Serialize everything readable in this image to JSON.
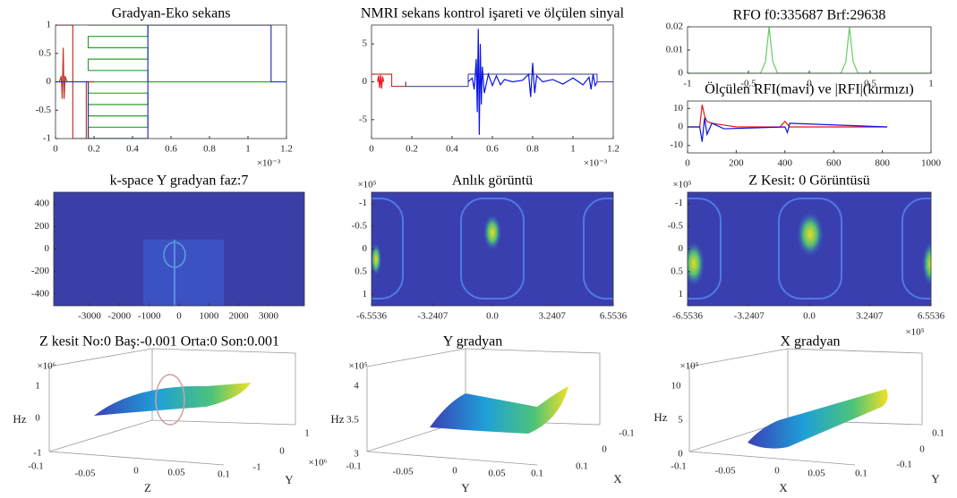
{
  "chart_data": [
    {
      "type": "line",
      "title": "Gradyan-Eko sekans",
      "xlim": [
        0,
        1.2
      ],
      "ylim": [
        -1,
        1
      ],
      "xticks": [
        0,
        0.2,
        0.4,
        0.6,
        0.8,
        1,
        1.2
      ],
      "yticks": [
        -1,
        -0.5,
        0,
        0.5,
        1
      ],
      "x_exponent": "×10⁻³",
      "series": [
        {
          "color": "#2ca02c",
          "x": [
            0.17,
            0.48,
            0.48,
            0.17,
            0.17,
            0.48,
            0.48,
            0.17,
            0.17,
            0.48,
            0.48,
            0.17,
            0.17,
            0.48,
            0.48,
            0.17,
            0.17,
            0.48,
            0.48,
            0.17,
            0.17,
            0.48
          ],
          "values": [
            1,
            1,
            0.8,
            0.8,
            0.6,
            0.6,
            0.4,
            0.4,
            0.2,
            0.2,
            0,
            0,
            -0.2,
            -0.2,
            -0.4,
            -0.4,
            -0.6,
            -0.6,
            -0.8,
            -0.8,
            -1,
            -1
          ]
        },
        {
          "color": "#2ca02c",
          "x": [
            0.48,
            1.12
          ],
          "values": [
            0,
            0
          ]
        },
        {
          "color": "#c0392b",
          "x": [
            0,
            0.09,
            0.09,
            0.16,
            0.16,
            0.2
          ],
          "values": [
            1,
            1,
            -1,
            -1,
            0,
            0
          ]
        },
        {
          "color": "#c0392b",
          "x": [
            0.02,
            0.03,
            0.035,
            0.04,
            0.045,
            0.05,
            0.06
          ],
          "values": [
            0,
            0.1,
            -0.3,
            0.6,
            -0.3,
            0.1,
            0
          ]
        },
        {
          "color": "#2a3ab0",
          "x": [
            0,
            0.17,
            0.17,
            0.48,
            0.48,
            1.12,
            1.12,
            1.2
          ],
          "values": [
            0,
            0,
            -1,
            -1,
            1,
            1,
            0,
            0
          ]
        }
      ]
    },
    {
      "type": "line",
      "title": "NMRI sekans kontrol işareti ve ölçülen sinyal",
      "xlim": [
        0,
        1.2
      ],
      "ylim": [
        -7.5,
        7.5
      ],
      "xticks": [
        0,
        0.2,
        0.4,
        0.6,
        0.8,
        1,
        1.2
      ],
      "yticks": [
        -5,
        0,
        5
      ],
      "x_exponent": "×10⁻³",
      "series": [
        {
          "color": "#c0392b",
          "x": [
            0,
            0.1,
            0.1,
            0.17,
            0.17
          ],
          "values": [
            1,
            1,
            -0.6,
            -0.6,
            0
          ]
        },
        {
          "color": "#e8141c",
          "x": [
            0.03,
            0.035,
            0.04,
            0.045,
            0.05,
            0.055,
            0.06
          ],
          "values": [
            0,
            0.8,
            -0.8,
            0.9,
            -0.9,
            0.7,
            0
          ]
        },
        {
          "color": "#2ca02c",
          "x": [
            0.17,
            0.48
          ],
          "values": [
            -0.6,
            -0.6
          ]
        },
        {
          "color": "#5a5aa0",
          "x": [
            0.17,
            0.17,
            0.48,
            0.48,
            1.12,
            1.12,
            1.2
          ],
          "values": [
            0,
            -0.6,
            -0.6,
            1,
            1,
            0,
            0
          ]
        },
        {
          "color": "#0a14e0",
          "x": [
            0.48,
            0.5,
            0.51,
            0.52,
            0.525,
            0.53,
            0.535,
            0.54,
            0.545,
            0.55,
            0.56,
            0.58,
            0.6,
            0.62,
            0.64,
            0.66,
            0.7,
            0.75,
            0.78,
            0.79,
            0.8,
            0.81,
            0.82,
            0.85,
            0.9,
            0.95,
            1.0,
            1.05,
            1.08,
            1.09,
            1.1,
            1.11,
            1.12
          ],
          "values": [
            0,
            0.5,
            -1,
            3,
            -4,
            7,
            -7,
            5,
            -3,
            2,
            -1.5,
            1,
            -0.5,
            0.8,
            -0.4,
            0.3,
            0,
            0.2,
            1,
            -2,
            2.5,
            -1.5,
            0.8,
            0,
            0.3,
            -0.3,
            0.5,
            -0.4,
            0.6,
            -1,
            1,
            -0.5,
            0
          ]
        }
      ]
    },
    {
      "type": "line",
      "title": "RFO f0:335687 Brf:29638",
      "xlim": [
        -1,
        1
      ],
      "ylim": [
        0,
        0.02
      ],
      "xticks": [
        -1,
        -0.5,
        0,
        0.5,
        1
      ],
      "yticks": [
        0,
        0.01,
        0.02
      ],
      "series": [
        {
          "color": "#66cc66",
          "x": [
            -1,
            -0.4,
            -0.36,
            -0.33,
            -0.3,
            -0.26,
            0.26,
            0.3,
            0.33,
            0.36,
            0.4,
            1
          ],
          "values": [
            0,
            0,
            0.005,
            0.02,
            0.005,
            0,
            0,
            0.005,
            0.02,
            0.005,
            0,
            0
          ]
        }
      ]
    },
    {
      "type": "line",
      "title": "Ölçülen RFI(mavi) ve |RFI|(kırmızı)",
      "xlim": [
        0,
        1000
      ],
      "ylim": [
        -14,
        14
      ],
      "xticks": [
        0,
        200,
        400,
        600,
        800,
        1000
      ],
      "yticks": [
        -10,
        0,
        10
      ],
      "series": [
        {
          "color": "#e8141c",
          "x": [
            0,
            50,
            60,
            70,
            80,
            100,
            150,
            200,
            380,
            400,
            420,
            820
          ],
          "values": [
            0,
            0,
            12,
            6,
            3,
            2,
            1,
            0,
            0,
            3,
            0,
            0
          ]
        },
        {
          "color": "#0a14e0",
          "x": [
            0,
            50,
            60,
            70,
            80,
            100,
            150,
            400,
            410,
            420,
            820
          ],
          "values": [
            0,
            0,
            -8,
            5,
            -4,
            2,
            -1,
            0,
            -3,
            2,
            0
          ]
        }
      ]
    },
    {
      "type": "image",
      "title": "k-space Y gradyan faz:7",
      "xlim": [
        -4200,
        4200
      ],
      "ylim": [
        -505,
        505
      ],
      "xticks": [
        -3000,
        -2000,
        -1000,
        0,
        1000,
        2000,
        3000
      ],
      "yticks": [
        -400,
        -200,
        0,
        200,
        400
      ]
    },
    {
      "type": "image",
      "title": "Anlık görüntü",
      "xlim": [
        -6.5536,
        6.5536
      ],
      "ylim": [
        -1.25,
        1.25
      ],
      "y_reversed": true,
      "xticks": [
        -6.5536,
        -3.2407,
        {
          "value": 0,
          "label": "0.0"
        },
        3.2407,
        6.5536
      ],
      "yticks": [
        -1,
        -0.5,
        0,
        0.5,
        1
      ],
      "y_exponent": "×10⁵"
    },
    {
      "type": "image",
      "title": "Z Kesit: 0 Görüntüsü",
      "xlim": [
        -6.5536,
        6.5536
      ],
      "ylim": [
        -1.25,
        1.25
      ],
      "y_reversed": true,
      "xticks": [
        -6.5536,
        -3.2407,
        {
          "value": 0,
          "label": "0.0"
        },
        3.2407,
        6.5536
      ],
      "yticks": [
        -1,
        -0.5,
        0,
        0.5,
        1
      ],
      "y_exponent": "×10⁵",
      "x_exponent": "×10⁵"
    },
    {
      "type": "surface",
      "title": "Z kesit No:0 Baş:-0.001 Orta:0 Son:0.001",
      "zlabel": "Hz",
      "xlabel": "Z",
      "ylabel": "Y",
      "zticks": [
        1,
        0,
        -1
      ],
      "z_exponent": "×10⁶",
      "xticks": [
        -0.1,
        -0.05,
        0,
        0.05,
        0.1
      ],
      "yticks": [
        1,
        0,
        -1
      ],
      "y_exponent": "×10⁶"
    },
    {
      "type": "surface",
      "title": "Y gradyan",
      "zlabel": "Hz",
      "xlabel": "Y",
      "ylabel": "X",
      "zticks": [
        4,
        3.5,
        3
      ],
      "z_exponent": "×10⁵",
      "xticks": [
        -0.1,
        -0.05,
        0,
        0.05,
        0.1
      ],
      "yticks": [
        -0.1,
        0,
        0.1
      ]
    },
    {
      "type": "surface",
      "title": "X gradyan",
      "zlabel": "Hz",
      "xlabel": "X",
      "ylabel": "Y",
      "zticks": [
        10,
        5,
        0
      ],
      "z_exponent": "×10⁵",
      "xticks": [
        -0.1,
        -0.05,
        0,
        0.05,
        0.1
      ],
      "yticks": [
        0.1,
        0,
        -0.1
      ]
    }
  ]
}
